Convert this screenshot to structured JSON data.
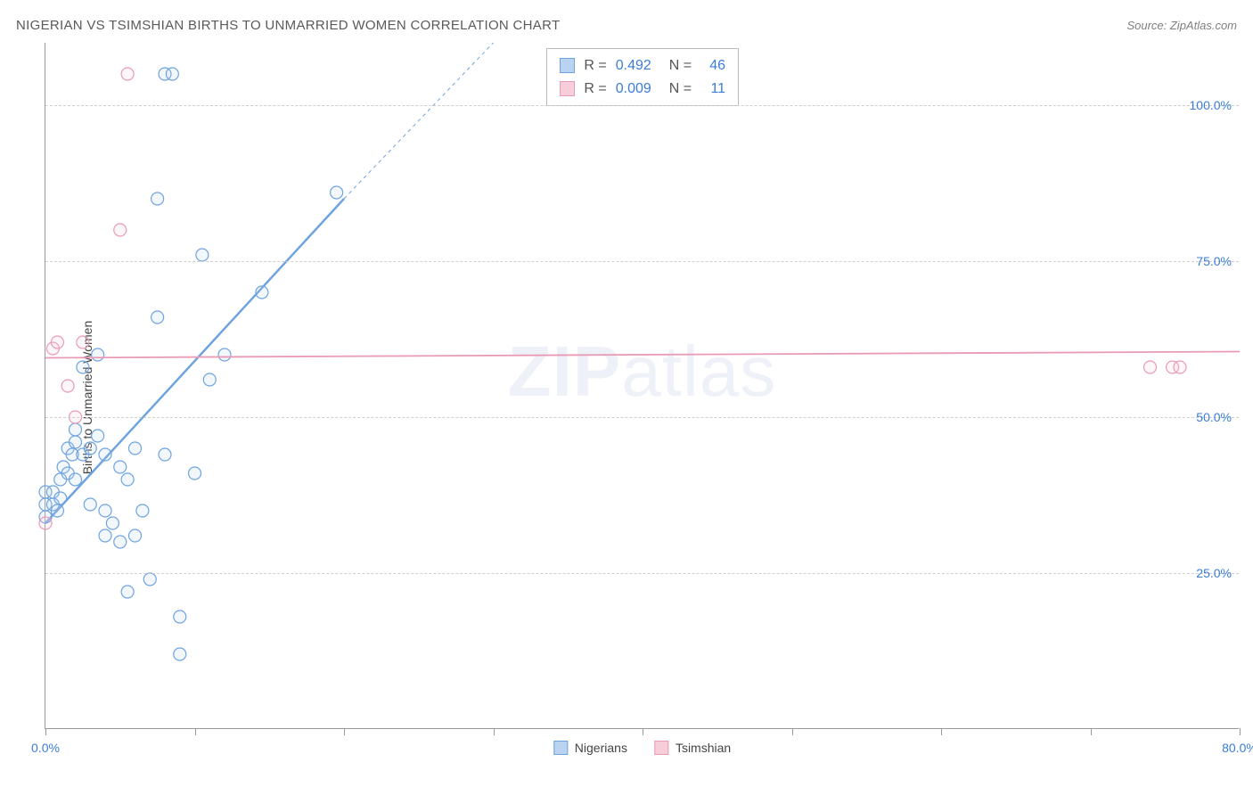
{
  "header": {
    "title": "NIGERIAN VS TSIMSHIAN BIRTHS TO UNMARRIED WOMEN CORRELATION CHART",
    "source": "Source: ZipAtlas.com"
  },
  "chart": {
    "type": "scatter",
    "ylabel": "Births to Unmarried Women",
    "xlim": [
      0,
      80
    ],
    "ylim": [
      0,
      110
    ],
    "x_ticks": [
      0,
      10,
      20,
      30,
      40,
      50,
      60,
      70,
      80
    ],
    "x_tick_labels": {
      "0": "0.0%",
      "80": "80.0%"
    },
    "y_gridlines": [
      25,
      50,
      75,
      100
    ],
    "y_tick_labels": {
      "25": "25.0%",
      "50": "50.0%",
      "75": "75.0%",
      "100": "100.0%"
    },
    "background_color": "#ffffff",
    "grid_color": "#d0d0d0",
    "axis_color": "#999999",
    "marker_radius": 7,
    "marker_stroke_width": 1.2,
    "marker_fill_opacity": 0.18,
    "series": [
      {
        "name": "Nigerians",
        "color": "#6fa3e0",
        "fill": "#b9d3f0",
        "r_value": "0.492",
        "n_value": "46",
        "regression": {
          "x1": 0,
          "y1": 33,
          "x2": 20,
          "y2": 85,
          "extend_x2": 30,
          "extend_y2": 110,
          "width": 2.5,
          "dash_extend": "4 4"
        },
        "points": [
          [
            0,
            34
          ],
          [
            0,
            36
          ],
          [
            0,
            38
          ],
          [
            0.5,
            36
          ],
          [
            0.5,
            38
          ],
          [
            0.8,
            35
          ],
          [
            1,
            37
          ],
          [
            1,
            40
          ],
          [
            1.2,
            42
          ],
          [
            1.5,
            41
          ],
          [
            1.5,
            45
          ],
          [
            1.8,
            44
          ],
          [
            2,
            46
          ],
          [
            2,
            40
          ],
          [
            2,
            48
          ],
          [
            2.5,
            44
          ],
          [
            2.5,
            58
          ],
          [
            3,
            36
          ],
          [
            3,
            45
          ],
          [
            3.5,
            47
          ],
          [
            3.5,
            60
          ],
          [
            4,
            31
          ],
          [
            4,
            35
          ],
          [
            4,
            44
          ],
          [
            4.5,
            33
          ],
          [
            5,
            30
          ],
          [
            5,
            42
          ],
          [
            5.5,
            40
          ],
          [
            5.5,
            22
          ],
          [
            6,
            31
          ],
          [
            6,
            45
          ],
          [
            6.5,
            35
          ],
          [
            7,
            24
          ],
          [
            7.5,
            85
          ],
          [
            7.5,
            66
          ],
          [
            8,
            44
          ],
          [
            8,
            105
          ],
          [
            8.5,
            105
          ],
          [
            9,
            12
          ],
          [
            9,
            18
          ],
          [
            10,
            41
          ],
          [
            10.5,
            76
          ],
          [
            11,
            56
          ],
          [
            12,
            60
          ],
          [
            14.5,
            70
          ],
          [
            19.5,
            86
          ]
        ]
      },
      {
        "name": "Tsimshian",
        "color": "#e99ab5",
        "fill": "#f6cdd9",
        "r_value": "0.009",
        "n_value": "11",
        "regression": {
          "x1": 0,
          "y1": 59.5,
          "x2": 80,
          "y2": 60.5,
          "width": 1.8
        },
        "points": [
          [
            0,
            33
          ],
          [
            0.5,
            61
          ],
          [
            0.8,
            62
          ],
          [
            1.5,
            55
          ],
          [
            2,
            50
          ],
          [
            2.5,
            62
          ],
          [
            5,
            80
          ],
          [
            5.5,
            105
          ],
          [
            74,
            58
          ],
          [
            75.5,
            58
          ],
          [
            76,
            58
          ]
        ]
      }
    ],
    "watermark": "ZIPatlas",
    "bottom_legend": [
      "Nigerians",
      "Tsimshian"
    ]
  }
}
